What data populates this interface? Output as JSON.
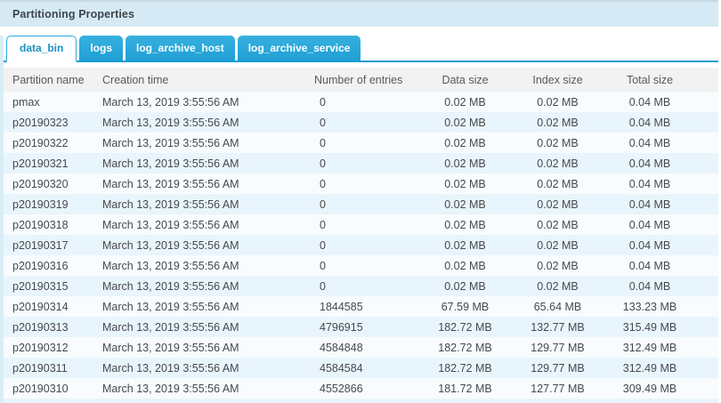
{
  "panel": {
    "title": "Partitioning Properties"
  },
  "tabs": [
    {
      "label": "data_bin",
      "active": true
    },
    {
      "label": "logs",
      "active": false
    },
    {
      "label": "log_archive_host",
      "active": false
    },
    {
      "label": "log_archive_service",
      "active": false
    }
  ],
  "table": {
    "columns": [
      "Partition name",
      "Creation time",
      "Number of entries",
      "Data size",
      "Index size",
      "Total size"
    ],
    "rows": [
      [
        "pmax",
        "March 13, 2019 3:55:56 AM",
        "0",
        "0.02 MB",
        "0.02 MB",
        "0.04 MB"
      ],
      [
        "p20190323",
        "March 13, 2019 3:55:56 AM",
        "0",
        "0.02 MB",
        "0.02 MB",
        "0.04 MB"
      ],
      [
        "p20190322",
        "March 13, 2019 3:55:56 AM",
        "0",
        "0.02 MB",
        "0.02 MB",
        "0.04 MB"
      ],
      [
        "p20190321",
        "March 13, 2019 3:55:56 AM",
        "0",
        "0.02 MB",
        "0.02 MB",
        "0.04 MB"
      ],
      [
        "p20190320",
        "March 13, 2019 3:55:56 AM",
        "0",
        "0.02 MB",
        "0.02 MB",
        "0.04 MB"
      ],
      [
        "p20190319",
        "March 13, 2019 3:55:56 AM",
        "0",
        "0.02 MB",
        "0.02 MB",
        "0.04 MB"
      ],
      [
        "p20190318",
        "March 13, 2019 3:55:56 AM",
        "0",
        "0.02 MB",
        "0.02 MB",
        "0.04 MB"
      ],
      [
        "p20190317",
        "March 13, 2019 3:55:56 AM",
        "0",
        "0.02 MB",
        "0.02 MB",
        "0.04 MB"
      ],
      [
        "p20190316",
        "March 13, 2019 3:55:56 AM",
        "0",
        "0.02 MB",
        "0.02 MB",
        "0.04 MB"
      ],
      [
        "p20190315",
        "March 13, 2019 3:55:56 AM",
        "0",
        "0.02 MB",
        "0.02 MB",
        "0.04 MB"
      ],
      [
        "p20190314",
        "March 13, 2019 3:55:56 AM",
        "1844585",
        "67.59 MB",
        "65.64 MB",
        "133.23 MB"
      ],
      [
        "p20190313",
        "March 13, 2019 3:55:56 AM",
        "4796915",
        "182.72 MB",
        "132.77 MB",
        "315.49 MB"
      ],
      [
        "p20190312",
        "March 13, 2019 3:55:56 AM",
        "4584848",
        "182.72 MB",
        "129.77 MB",
        "312.49 MB"
      ],
      [
        "p20190311",
        "March 13, 2019 3:55:56 AM",
        "4584584",
        "182.72 MB",
        "129.77 MB",
        "312.49 MB"
      ],
      [
        "p20190310",
        "March 13, 2019 3:55:56 AM",
        "4552866",
        "181.72 MB",
        "127.77 MB",
        "309.49 MB"
      ]
    ]
  },
  "colors": {
    "header_band": "#d5eaf4",
    "tab_blue": "#29a9dc",
    "tab_underline": "#189dd6",
    "active_tab_text": "#1d8fc4",
    "table_header_bg": "#f2f2f2",
    "row_light": "#f8fcfe",
    "row_alt": "#e9f5fc",
    "body_text": "#46494d"
  }
}
